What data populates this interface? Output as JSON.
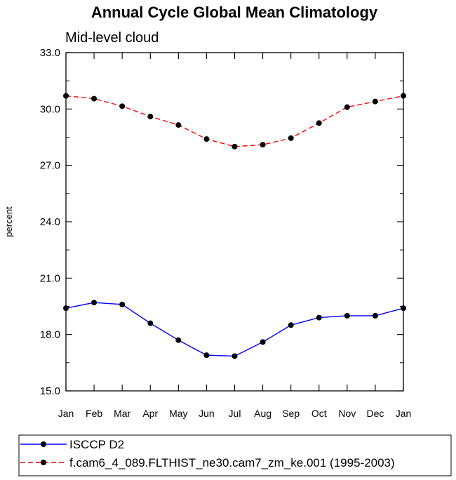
{
  "chart_data": {
    "type": "line",
    "title": "Annual Cycle Global Mean Climatology",
    "subtitle": "Mid-level cloud",
    "xlabel": "",
    "ylabel": "percent",
    "categories": [
      "Jan",
      "Feb",
      "Mar",
      "Apr",
      "May",
      "Jun",
      "Jul",
      "Aug",
      "Sep",
      "Oct",
      "Nov",
      "Dec",
      "Jan"
    ],
    "ylim": [
      15.0,
      33.0
    ],
    "yticks": [
      "15.0",
      "18.0",
      "21.0",
      "24.0",
      "27.0",
      "30.0",
      "33.0"
    ],
    "series": [
      {
        "name": "ISCCP D2",
        "color": "#0000ff",
        "line_style": "solid",
        "marker": "filled-circle",
        "values": [
          19.4,
          19.7,
          19.6,
          18.6,
          17.7,
          16.9,
          16.85,
          17.6,
          18.5,
          18.9,
          19.0,
          19.0,
          19.4
        ]
      },
      {
        "name": "f.cam6_4_089.FLTHIST_ne30.cam7_zm_ke.001 (1995-2003)",
        "color": "#ff0000",
        "line_style": "dashed",
        "marker": "filled-circle",
        "values": [
          30.7,
          30.55,
          30.15,
          29.6,
          29.15,
          28.4,
          28.0,
          28.1,
          28.45,
          29.25,
          30.1,
          30.4,
          30.7
        ]
      }
    ],
    "legend_position": "bottom-left",
    "grid": false
  }
}
